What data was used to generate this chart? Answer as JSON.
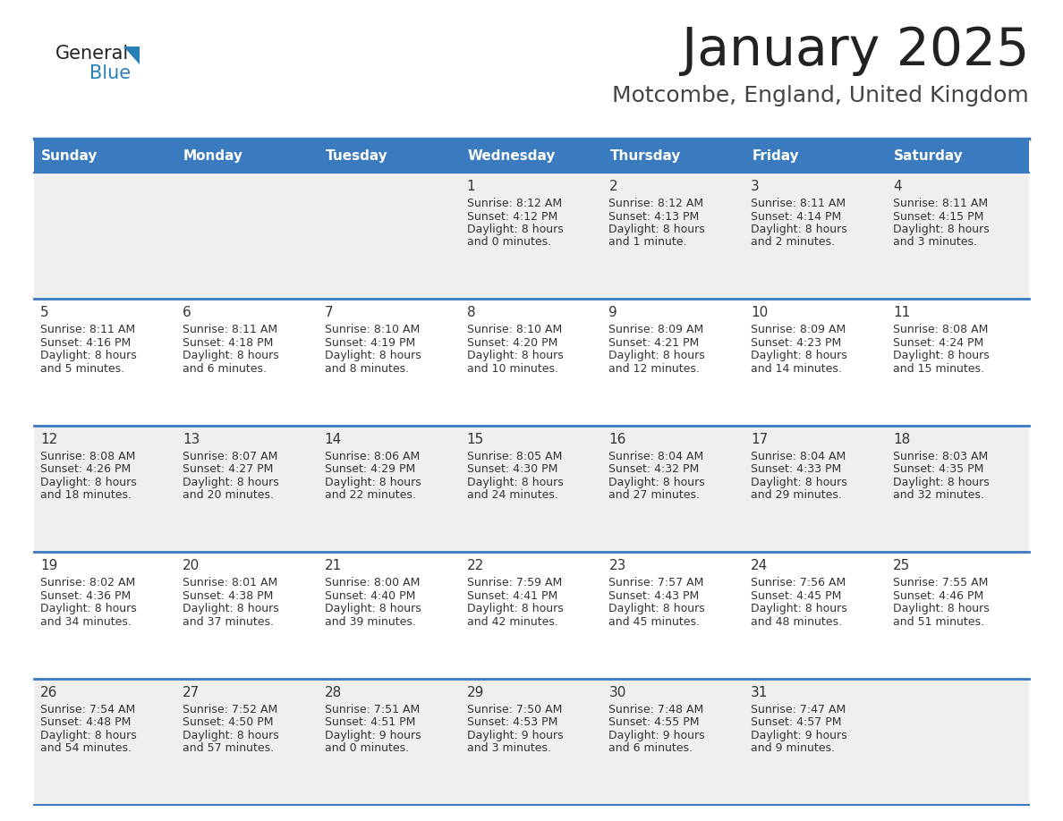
{
  "title": "January 2025",
  "subtitle": "Motcombe, England, United Kingdom",
  "header_color": "#3a7abf",
  "header_text_color": "#ffffff",
  "cell_bg_even": "#efefef",
  "cell_bg_odd": "#ffffff",
  "day_headers": [
    "Sunday",
    "Monday",
    "Tuesday",
    "Wednesday",
    "Thursday",
    "Friday",
    "Saturday"
  ],
  "title_color": "#222222",
  "subtitle_color": "#444444",
  "border_color": "#3a7abf",
  "logo_black": "#222222",
  "logo_blue": "#2980b9",
  "logo_triangle": "#2980b9",
  "days": [
    {
      "date": 1,
      "col": 3,
      "row": 0,
      "sunrise": "8:12 AM",
      "sunset": "4:12 PM",
      "daylight_h": "8 hours",
      "daylight_m": "and 0 minutes."
    },
    {
      "date": 2,
      "col": 4,
      "row": 0,
      "sunrise": "8:12 AM",
      "sunset": "4:13 PM",
      "daylight_h": "8 hours",
      "daylight_m": "and 1 minute."
    },
    {
      "date": 3,
      "col": 5,
      "row": 0,
      "sunrise": "8:11 AM",
      "sunset": "4:14 PM",
      "daylight_h": "8 hours",
      "daylight_m": "and 2 minutes."
    },
    {
      "date": 4,
      "col": 6,
      "row": 0,
      "sunrise": "8:11 AM",
      "sunset": "4:15 PM",
      "daylight_h": "8 hours",
      "daylight_m": "and 3 minutes."
    },
    {
      "date": 5,
      "col": 0,
      "row": 1,
      "sunrise": "8:11 AM",
      "sunset": "4:16 PM",
      "daylight_h": "8 hours",
      "daylight_m": "and 5 minutes."
    },
    {
      "date": 6,
      "col": 1,
      "row": 1,
      "sunrise": "8:11 AM",
      "sunset": "4:18 PM",
      "daylight_h": "8 hours",
      "daylight_m": "and 6 minutes."
    },
    {
      "date": 7,
      "col": 2,
      "row": 1,
      "sunrise": "8:10 AM",
      "sunset": "4:19 PM",
      "daylight_h": "8 hours",
      "daylight_m": "and 8 minutes."
    },
    {
      "date": 8,
      "col": 3,
      "row": 1,
      "sunrise": "8:10 AM",
      "sunset": "4:20 PM",
      "daylight_h": "8 hours",
      "daylight_m": "and 10 minutes."
    },
    {
      "date": 9,
      "col": 4,
      "row": 1,
      "sunrise": "8:09 AM",
      "sunset": "4:21 PM",
      "daylight_h": "8 hours",
      "daylight_m": "and 12 minutes."
    },
    {
      "date": 10,
      "col": 5,
      "row": 1,
      "sunrise": "8:09 AM",
      "sunset": "4:23 PM",
      "daylight_h": "8 hours",
      "daylight_m": "and 14 minutes."
    },
    {
      "date": 11,
      "col": 6,
      "row": 1,
      "sunrise": "8:08 AM",
      "sunset": "4:24 PM",
      "daylight_h": "8 hours",
      "daylight_m": "and 15 minutes."
    },
    {
      "date": 12,
      "col": 0,
      "row": 2,
      "sunrise": "8:08 AM",
      "sunset": "4:26 PM",
      "daylight_h": "8 hours",
      "daylight_m": "and 18 minutes."
    },
    {
      "date": 13,
      "col": 1,
      "row": 2,
      "sunrise": "8:07 AM",
      "sunset": "4:27 PM",
      "daylight_h": "8 hours",
      "daylight_m": "and 20 minutes."
    },
    {
      "date": 14,
      "col": 2,
      "row": 2,
      "sunrise": "8:06 AM",
      "sunset": "4:29 PM",
      "daylight_h": "8 hours",
      "daylight_m": "and 22 minutes."
    },
    {
      "date": 15,
      "col": 3,
      "row": 2,
      "sunrise": "8:05 AM",
      "sunset": "4:30 PM",
      "daylight_h": "8 hours",
      "daylight_m": "and 24 minutes."
    },
    {
      "date": 16,
      "col": 4,
      "row": 2,
      "sunrise": "8:04 AM",
      "sunset": "4:32 PM",
      "daylight_h": "8 hours",
      "daylight_m": "and 27 minutes."
    },
    {
      "date": 17,
      "col": 5,
      "row": 2,
      "sunrise": "8:04 AM",
      "sunset": "4:33 PM",
      "daylight_h": "8 hours",
      "daylight_m": "and 29 minutes."
    },
    {
      "date": 18,
      "col": 6,
      "row": 2,
      "sunrise": "8:03 AM",
      "sunset": "4:35 PM",
      "daylight_h": "8 hours",
      "daylight_m": "and 32 minutes."
    },
    {
      "date": 19,
      "col": 0,
      "row": 3,
      "sunrise": "8:02 AM",
      "sunset": "4:36 PM",
      "daylight_h": "8 hours",
      "daylight_m": "and 34 minutes."
    },
    {
      "date": 20,
      "col": 1,
      "row": 3,
      "sunrise": "8:01 AM",
      "sunset": "4:38 PM",
      "daylight_h": "8 hours",
      "daylight_m": "and 37 minutes."
    },
    {
      "date": 21,
      "col": 2,
      "row": 3,
      "sunrise": "8:00 AM",
      "sunset": "4:40 PM",
      "daylight_h": "8 hours",
      "daylight_m": "and 39 minutes."
    },
    {
      "date": 22,
      "col": 3,
      "row": 3,
      "sunrise": "7:59 AM",
      "sunset": "4:41 PM",
      "daylight_h": "8 hours",
      "daylight_m": "and 42 minutes."
    },
    {
      "date": 23,
      "col": 4,
      "row": 3,
      "sunrise": "7:57 AM",
      "sunset": "4:43 PM",
      "daylight_h": "8 hours",
      "daylight_m": "and 45 minutes."
    },
    {
      "date": 24,
      "col": 5,
      "row": 3,
      "sunrise": "7:56 AM",
      "sunset": "4:45 PM",
      "daylight_h": "8 hours",
      "daylight_m": "and 48 minutes."
    },
    {
      "date": 25,
      "col": 6,
      "row": 3,
      "sunrise": "7:55 AM",
      "sunset": "4:46 PM",
      "daylight_h": "8 hours",
      "daylight_m": "and 51 minutes."
    },
    {
      "date": 26,
      "col": 0,
      "row": 4,
      "sunrise": "7:54 AM",
      "sunset": "4:48 PM",
      "daylight_h": "8 hours",
      "daylight_m": "and 54 minutes."
    },
    {
      "date": 27,
      "col": 1,
      "row": 4,
      "sunrise": "7:52 AM",
      "sunset": "4:50 PM",
      "daylight_h": "8 hours",
      "daylight_m": "and 57 minutes."
    },
    {
      "date": 28,
      "col": 2,
      "row": 4,
      "sunrise": "7:51 AM",
      "sunset": "4:51 PM",
      "daylight_h": "9 hours",
      "daylight_m": "and 0 minutes."
    },
    {
      "date": 29,
      "col": 3,
      "row": 4,
      "sunrise": "7:50 AM",
      "sunset": "4:53 PM",
      "daylight_h": "9 hours",
      "daylight_m": "and 3 minutes."
    },
    {
      "date": 30,
      "col": 4,
      "row": 4,
      "sunrise": "7:48 AM",
      "sunset": "4:55 PM",
      "daylight_h": "9 hours",
      "daylight_m": "and 6 minutes."
    },
    {
      "date": 31,
      "col": 5,
      "row": 4,
      "sunrise": "7:47 AM",
      "sunset": "4:57 PM",
      "daylight_h": "9 hours",
      "daylight_m": "and 9 minutes."
    }
  ]
}
